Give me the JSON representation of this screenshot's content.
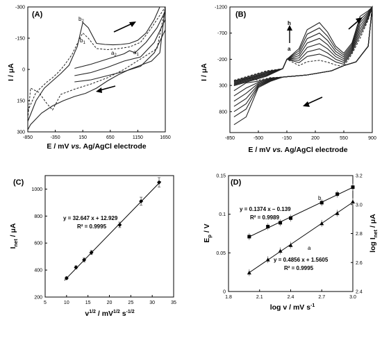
{
  "chart_data": [
    {
      "type": "line",
      "panel_label": "(A)",
      "xlabel": "E / mV vs. Ag/AgCl electrode",
      "ylabel": "I / μA",
      "xlim": [
        -850,
        1650
      ],
      "ylim": [
        -300,
        300
      ],
      "y_inverted": true,
      "xticks": [
        -850,
        -350,
        150,
        650,
        1150,
        1650
      ],
      "yticks": [
        -300,
        -150,
        0,
        150,
        300
      ],
      "annotations": [
        "b2",
        "b1",
        "a2",
        "a1"
      ],
      "series": [
        {
          "style": "solid",
          "x": [
            -850,
            -700,
            -550,
            -400,
            -250,
            -100,
            50,
            150,
            250,
            400,
            550,
            700,
            850,
            1000,
            1150,
            1300,
            1450,
            1550,
            1650,
            1550,
            1400,
            1200,
            1000,
            800,
            600,
            400,
            200,
            0,
            -200,
            -400,
            -600,
            -800,
            -850
          ],
          "y": [
            250,
            150,
            90,
            55,
            20,
            -20,
            -110,
            -225,
            -200,
            -125,
            -120,
            -118,
            -120,
            -125,
            -140,
            -175,
            -240,
            -300,
            -300,
            -80,
            -40,
            -20,
            0,
            25,
            55,
            90,
            115,
            130,
            150,
            175,
            210,
            265,
            290
          ]
        },
        {
          "style": "dashed",
          "x": [
            -850,
            -700,
            -500,
            -400,
            -300,
            -200,
            -50,
            100,
            150,
            250,
            400,
            600,
            800,
            1000,
            1200,
            1400,
            1550,
            1650,
            1500,
            1200,
            900,
            600,
            300,
            0,
            -250,
            -400,
            -500,
            -650,
            -800,
            -850
          ],
          "y": [
            200,
            110,
            60,
            40,
            15,
            -15,
            -70,
            -150,
            -175,
            -150,
            -100,
            -95,
            -100,
            -108,
            -130,
            -200,
            -260,
            -300,
            -100,
            -50,
            0,
            40,
            70,
            95,
            120,
            195,
            165,
            110,
            90,
            240
          ]
        },
        {
          "style": "solid",
          "x": [
            0,
            300,
            600,
            900,
            1000,
            1100,
            1300,
            1500,
            1650
          ],
          "y": [
            -5,
            -25,
            -50,
            -75,
            -90,
            -80,
            -130,
            -200,
            -280
          ]
        },
        {
          "style": "solid",
          "x": [
            0,
            300,
            600,
            900,
            1200,
            1450,
            1650
          ],
          "y": [
            30,
            15,
            -10,
            -40,
            -60,
            -130,
            -240
          ]
        },
        {
          "style": "solid",
          "x": [
            0,
            300,
            600,
            900,
            1200,
            1450,
            1650
          ],
          "y": [
            60,
            50,
            30,
            10,
            -15,
            -80,
            -190
          ]
        }
      ]
    },
    {
      "type": "line",
      "panel_label": "(B)",
      "xlabel": "E / mV vs. Ag/AgCl electrode",
      "ylabel": "I / μA",
      "xlim": [
        -850,
        900
      ],
      "ylim": [
        -1200,
        1200
      ],
      "y_inverted": true,
      "xticks": [
        -850,
        -500,
        -150,
        200,
        550,
        900
      ],
      "yticks": [
        -1200,
        -700,
        -200,
        300,
        800
      ],
      "annotations": [
        "h",
        "a"
      ],
      "peak_currents": [
        -180,
        -300,
        -400,
        -500,
        -600,
        -700,
        -800,
        -900
      ],
      "return_currents": [
        150,
        250,
        350,
        450,
        550,
        650,
        750,
        900
      ]
    },
    {
      "type": "scatter",
      "panel_label": "(C)",
      "xlabel": "v1/2 / mV1/2 s-1/2",
      "ylabel": "Inet / μA",
      "xlim": [
        5,
        35
      ],
      "ylim": [
        200,
        1100
      ],
      "xticks": [
        5,
        10,
        15,
        20,
        25,
        30,
        35
      ],
      "yticks": [
        200,
        400,
        600,
        800,
        1000
      ],
      "x": [
        10,
        12.2,
        14.1,
        15.8,
        22.4,
        27.4,
        31.6
      ],
      "y": [
        340,
        420,
        475,
        530,
        735,
        910,
        1050
      ],
      "error": [
        10,
        12,
        14,
        15,
        20,
        30,
        35
      ],
      "fit": {
        "slope": 32.647,
        "intercept": 12.929
      },
      "equation": "y = 32.647 x + 12.929",
      "r2": "R² = 0.9995"
    },
    {
      "type": "scatter",
      "panel_label": "(D)",
      "xlabel": "log v / mV s-1",
      "ylabel_left": "Ep / V",
      "ylabel_right": "log Inet / μA",
      "xlim": [
        1.8,
        3.0
      ],
      "ylim_left": [
        0,
        0.15
      ],
      "ylim_right": [
        2.4,
        3.2
      ],
      "xticks": [
        1.8,
        2.1,
        2.4,
        2.7,
        3.0
      ],
      "yticks_left": [
        0,
        0.05,
        0.1,
        0.15
      ],
      "yticks_right": [
        2.4,
        2.6,
        2.8,
        3.0,
        3.2
      ],
      "series": [
        {
          "name": "b",
          "axis": "left",
          "x": [
            2.0,
            2.18,
            2.3,
            2.4,
            2.7,
            2.85,
            3.0
          ],
          "y": [
            0.071,
            0.084,
            0.089,
            0.095,
            0.115,
            0.126,
            0.135
          ],
          "equation": "y = 0.1374 x – 0.139",
          "r2": "R² = 0.9989"
        },
        {
          "name": "a",
          "axis": "right",
          "x": [
            2.0,
            2.18,
            2.3,
            2.4,
            2.7,
            2.85,
            3.0
          ],
          "y": [
            2.53,
            2.62,
            2.68,
            2.72,
            2.87,
            2.94,
            3.02
          ],
          "equation": "y = 0.4856 x + 1.5605",
          "r2": "R² = 0.9995"
        }
      ]
    }
  ]
}
